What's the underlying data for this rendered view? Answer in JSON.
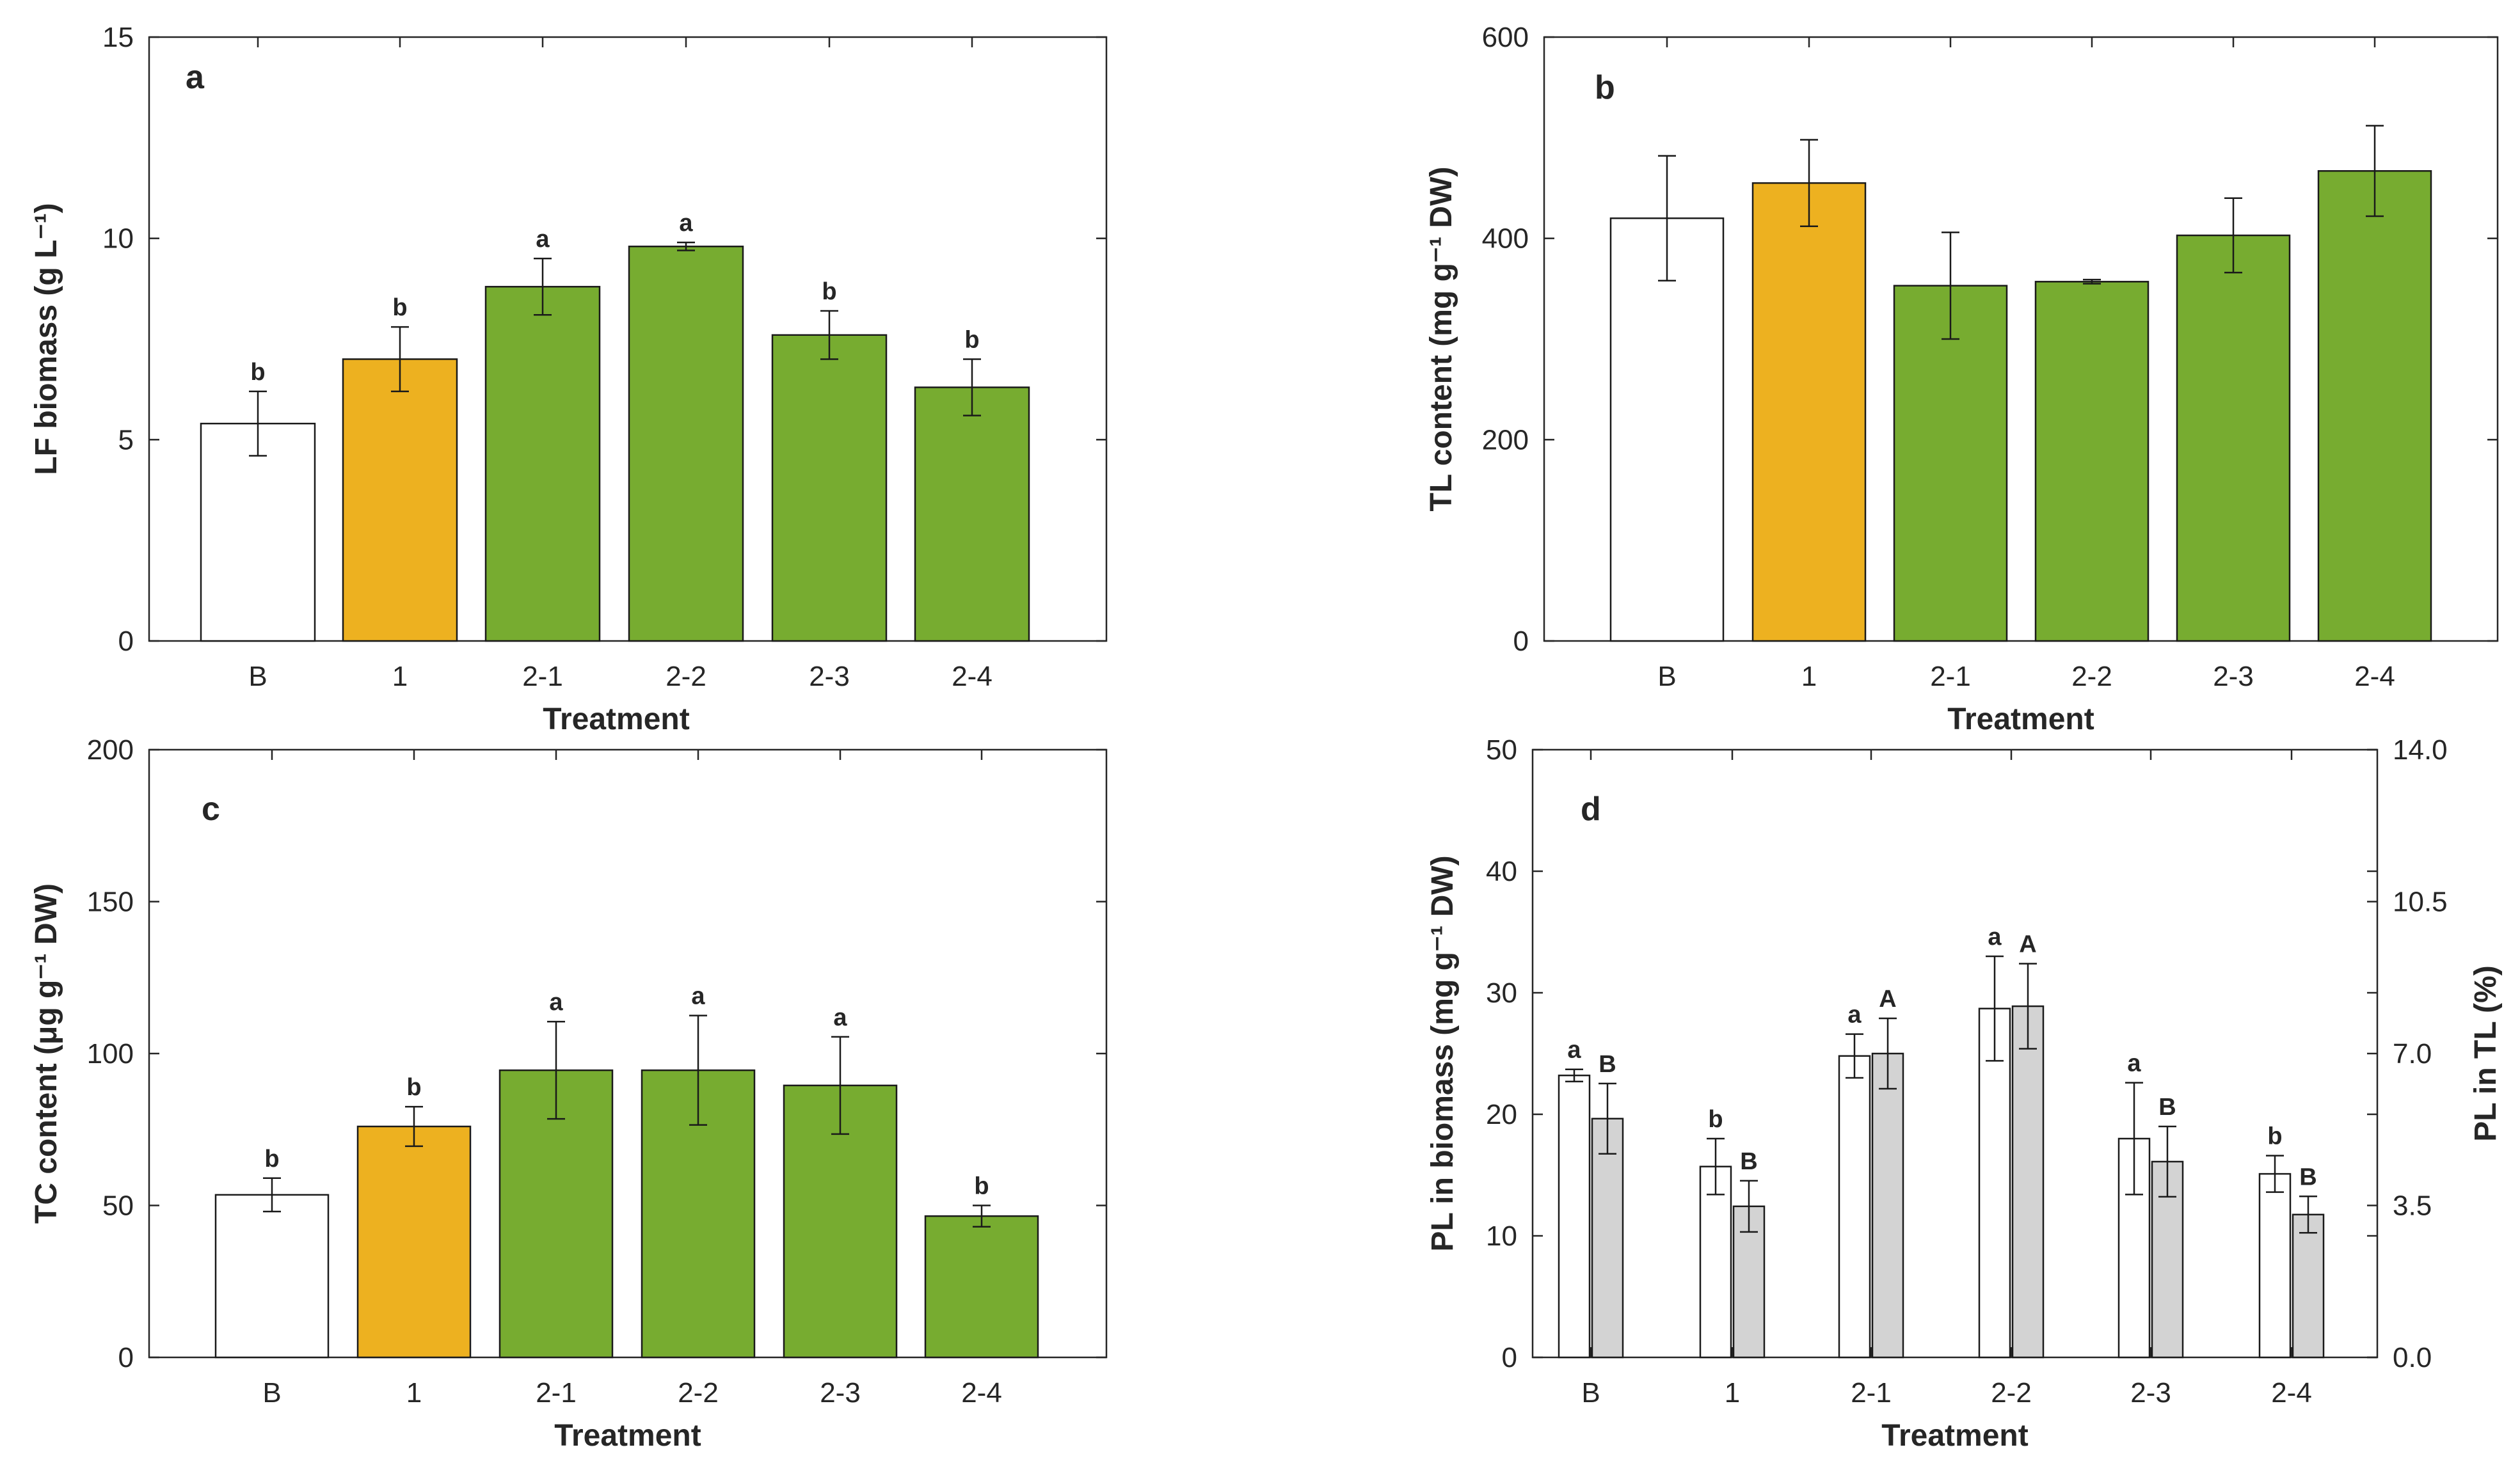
{
  "colors": {
    "white": "#ffffff",
    "orange": "#EDB120",
    "green": "#77AC30",
    "gray": "#d3d3d3"
  },
  "chart_data": [
    {
      "panel": "a",
      "type": "bar",
      "xlabel": "Treatment",
      "ylabel": "LF biomass (g L⁻¹)",
      "ylim": [
        0,
        15
      ],
      "yticks": [
        "0",
        "5",
        "10",
        "15"
      ],
      "categories": [
        "B",
        "1",
        "2-1",
        "2-2",
        "2-3",
        "2-4"
      ],
      "values": [
        5.4,
        7.0,
        8.8,
        9.8,
        7.6,
        6.3
      ],
      "errors": [
        0.8,
        0.8,
        0.7,
        0.1,
        0.6,
        0.7
      ],
      "colors": [
        "white",
        "orange",
        "green",
        "green",
        "green",
        "green"
      ],
      "significance": [
        "b",
        "b",
        "a",
        "a",
        "b",
        "b"
      ]
    },
    {
      "panel": "b",
      "type": "bar",
      "xlabel": "Treatment",
      "ylabel": "TL content (mg g⁻¹ DW)",
      "ylim": [
        0,
        600
      ],
      "yticks": [
        "0",
        "200",
        "400",
        "600"
      ],
      "categories": [
        "B",
        "1",
        "2-1",
        "2-2",
        "2-3",
        "2-4"
      ],
      "values": [
        420,
        455,
        353,
        357,
        403,
        467
      ],
      "errors": [
        62,
        43,
        53,
        2,
        37,
        45
      ],
      "colors": [
        "white",
        "orange",
        "green",
        "green",
        "green",
        "green"
      ],
      "significance": [
        "",
        "",
        "",
        "",
        "",
        ""
      ]
    },
    {
      "panel": "c",
      "type": "bar",
      "xlabel": "Treatment",
      "ylabel": "TC content (μg g⁻¹ DW)",
      "ylim": [
        0,
        200
      ],
      "yticks": [
        "0",
        "50",
        "100",
        "150",
        "200"
      ],
      "categories": [
        "B",
        "1",
        "2-1",
        "2-2",
        "2-3",
        "2-4"
      ],
      "values": [
        53.5,
        76,
        94.5,
        94.5,
        89.5,
        46.5
      ],
      "errors": [
        5.5,
        6.5,
        16,
        18,
        16,
        3.5
      ],
      "colors": [
        "white",
        "orange",
        "green",
        "green",
        "green",
        "green"
      ],
      "significance": [
        "b",
        "b",
        "a",
        "a",
        "a",
        "b"
      ]
    },
    {
      "panel": "d",
      "type": "bar",
      "xlabel": "Treatment",
      "ylabel": "PL in biomass (mg g⁻¹ DW)",
      "ylabel_right": "PL in TL (%)",
      "ylim": [
        0,
        50
      ],
      "yticks": [
        "0",
        "10",
        "20",
        "30",
        "40",
        "50"
      ],
      "ylim_right": [
        0,
        14
      ],
      "yticks_right": [
        "0.0",
        "3.5",
        "7.0",
        "10.5",
        "14.0"
      ],
      "categories": [
        "B",
        "1",
        "2-1",
        "2-2",
        "2-3",
        "2-4"
      ],
      "series": [
        {
          "name": "PL in biomass",
          "axis": "left",
          "color": "white",
          "values": [
            23.2,
            15.7,
            24.8,
            28.7,
            18.0,
            15.1
          ],
          "errors": [
            0.5,
            2.3,
            1.8,
            4.3,
            4.6,
            1.5
          ],
          "significance": [
            "a",
            "b",
            "a",
            "a",
            "a",
            "b"
          ]
        },
        {
          "name": "PL in TL",
          "axis": "right",
          "color": "gray",
          "values": [
            5.5,
            3.48,
            7.0,
            8.09,
            4.51,
            3.29
          ],
          "errors": [
            0.81,
            0.59,
            0.81,
            0.98,
            0.81,
            0.42
          ],
          "significance": [
            "B",
            "B",
            "A",
            "A",
            "B",
            "B"
          ]
        }
      ]
    }
  ]
}
